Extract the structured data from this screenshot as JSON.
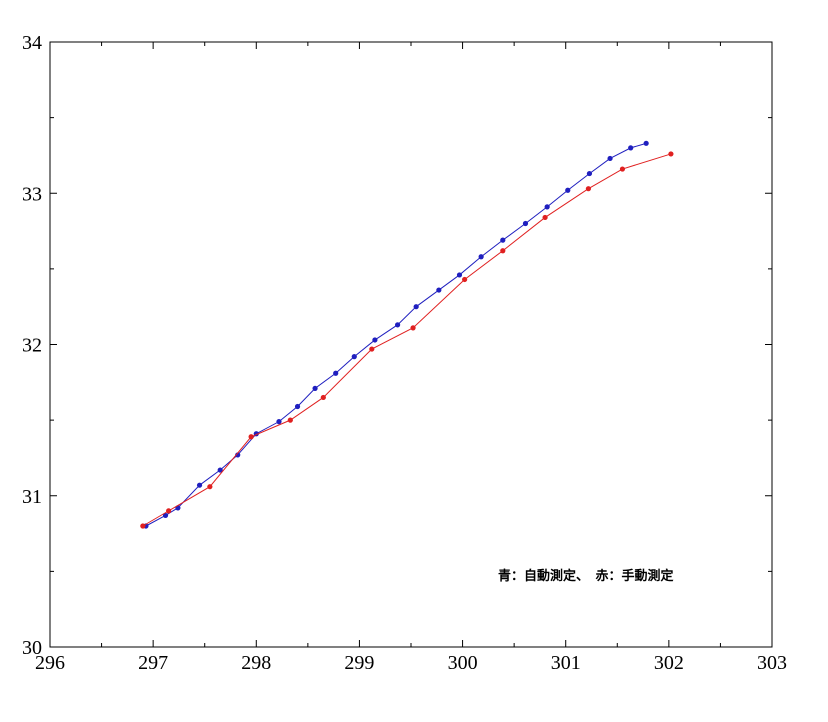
{
  "chart_data": {
    "type": "line",
    "title": "",
    "xlabel": "",
    "ylabel": "",
    "xlim": [
      296,
      303
    ],
    "ylim": [
      30,
      34
    ],
    "x_ticks": [
      "296",
      "297",
      "298",
      "299",
      "300",
      "301",
      "302",
      "303"
    ],
    "y_ticks": [
      "30",
      "31",
      "32",
      "33",
      "34"
    ],
    "grid": false,
    "legend_text": "青：自動測定、　赤：手動測定",
    "legend_placement": "bottom-right",
    "series": [
      {
        "color": "#1f1fbf",
        "points": [
          [
            296.93,
            30.8
          ],
          [
            297.12,
            30.87
          ],
          [
            297.24,
            30.92
          ],
          [
            297.45,
            31.07
          ],
          [
            297.65,
            31.17
          ],
          [
            297.82,
            31.27
          ],
          [
            298.0,
            31.41
          ],
          [
            298.22,
            31.49
          ],
          [
            298.4,
            31.59
          ],
          [
            298.57,
            31.71
          ],
          [
            298.77,
            31.81
          ],
          [
            298.95,
            31.92
          ],
          [
            299.15,
            32.03
          ],
          [
            299.37,
            32.13
          ],
          [
            299.55,
            32.25
          ],
          [
            299.77,
            32.36
          ],
          [
            299.97,
            32.46
          ],
          [
            300.18,
            32.58
          ],
          [
            300.39,
            32.69
          ],
          [
            300.61,
            32.8
          ],
          [
            300.82,
            32.91
          ],
          [
            301.02,
            33.02
          ],
          [
            301.23,
            33.13
          ],
          [
            301.43,
            33.23
          ],
          [
            301.63,
            33.3
          ],
          [
            301.78,
            33.33
          ]
        ]
      },
      {
        "color": "#e02020",
        "points": [
          [
            296.9,
            30.8
          ],
          [
            297.15,
            30.9
          ],
          [
            297.55,
            31.06
          ],
          [
            297.95,
            31.39
          ],
          [
            298.33,
            31.5
          ],
          [
            298.65,
            31.65
          ],
          [
            299.12,
            31.97
          ],
          [
            299.52,
            32.11
          ],
          [
            300.02,
            32.43
          ],
          [
            300.39,
            32.62
          ],
          [
            300.8,
            32.84
          ],
          [
            301.22,
            33.03
          ],
          [
            301.55,
            33.16
          ],
          [
            302.02,
            33.26
          ]
        ]
      }
    ]
  }
}
